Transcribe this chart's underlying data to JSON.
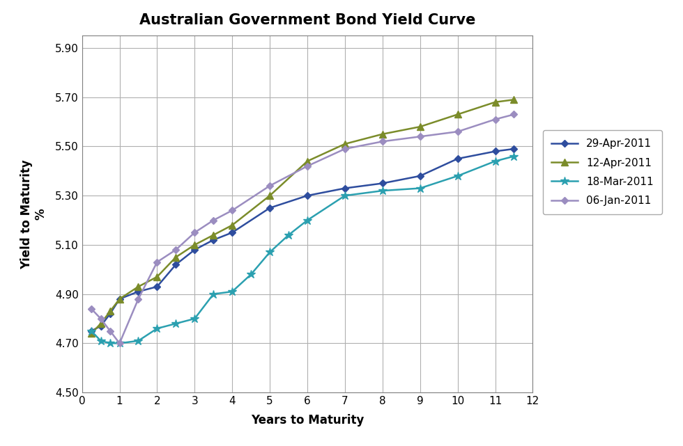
{
  "title": "Australian Government Bond Yield Curve",
  "xlabel": "Years to Maturity",
  "ylabel": "Yield to Maturity\n%",
  "xlim": [
    0,
    12
  ],
  "ylim": [
    4.5,
    5.95
  ],
  "yticks": [
    4.5,
    4.7,
    4.9,
    5.1,
    5.3,
    5.5,
    5.7,
    5.9
  ],
  "xticks": [
    0,
    1,
    2,
    3,
    4,
    5,
    6,
    7,
    8,
    9,
    10,
    11,
    12
  ],
  "series": [
    {
      "label": "29-Apr-2011",
      "color": "#2E4D9E",
      "marker": "D",
      "markersize": 5,
      "x": [
        0.25,
        0.5,
        0.75,
        1.0,
        1.5,
        2.0,
        2.5,
        3.0,
        3.5,
        4.0,
        5.0,
        6.0,
        7.0,
        8.0,
        9.0,
        10.0,
        11.0,
        11.5
      ],
      "y": [
        4.75,
        4.77,
        4.82,
        4.88,
        4.91,
        4.93,
        5.02,
        5.08,
        5.12,
        5.15,
        5.25,
        5.3,
        5.33,
        5.35,
        5.38,
        5.45,
        5.48,
        5.49
      ]
    },
    {
      "label": "12-Apr-2011",
      "color": "#7B8C2A",
      "marker": "^",
      "markersize": 7,
      "x": [
        0.25,
        0.5,
        0.75,
        1.0,
        1.5,
        2.0,
        2.5,
        3.0,
        3.5,
        4.0,
        5.0,
        6.0,
        7.0,
        8.0,
        9.0,
        10.0,
        11.0,
        11.5
      ],
      "y": [
        4.74,
        4.78,
        4.83,
        4.88,
        4.93,
        4.97,
        5.05,
        5.1,
        5.14,
        5.18,
        5.3,
        5.44,
        5.51,
        5.55,
        5.58,
        5.63,
        5.68,
        5.69
      ]
    },
    {
      "label": "18-Mar-2011",
      "color": "#2BA0B0",
      "marker": "*",
      "markersize": 9,
      "x": [
        0.25,
        0.5,
        0.75,
        1.0,
        1.5,
        2.0,
        2.5,
        3.0,
        3.5,
        4.0,
        4.5,
        5.0,
        5.5,
        6.0,
        7.0,
        8.0,
        9.0,
        10.0,
        11.0,
        11.5
      ],
      "y": [
        4.75,
        4.71,
        4.7,
        4.7,
        4.71,
        4.76,
        4.78,
        4.8,
        4.9,
        4.91,
        4.98,
        5.07,
        5.14,
        5.2,
        5.3,
        5.32,
        5.33,
        5.38,
        5.44,
        5.46
      ]
    },
    {
      "label": "06-Jan-2011",
      "color": "#9B8DC0",
      "marker": "D",
      "markersize": 5,
      "x": [
        0.25,
        0.5,
        0.75,
        1.0,
        1.5,
        2.0,
        2.5,
        3.0,
        3.5,
        4.0,
        5.0,
        6.0,
        7.0,
        8.0,
        9.0,
        10.0,
        11.0,
        11.5
      ],
      "y": [
        4.84,
        4.8,
        4.75,
        4.7,
        4.88,
        5.03,
        5.08,
        5.15,
        5.2,
        5.24,
        5.34,
        5.42,
        5.49,
        5.52,
        5.54,
        5.56,
        5.61,
        5.63
      ]
    }
  ],
  "background_color": "#ffffff",
  "plot_bg_color": "#ffffff",
  "grid_color": "#b0b0b0",
  "title_fontsize": 15,
  "axis_label_fontsize": 12,
  "tick_fontsize": 11,
  "legend_fontsize": 11
}
